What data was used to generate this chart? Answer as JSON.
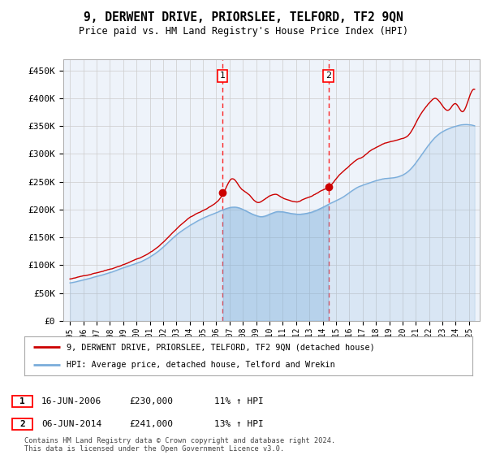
{
  "title": "9, DERWENT DRIVE, PRIORSLEE, TELFORD, TF2 9QN",
  "subtitle": "Price paid vs. HM Land Registry's House Price Index (HPI)",
  "ylabel_ticks": [
    "£0",
    "£50K",
    "£100K",
    "£150K",
    "£200K",
    "£250K",
    "£300K",
    "£350K",
    "£400K",
    "£450K"
  ],
  "ytick_values": [
    0,
    50000,
    100000,
    150000,
    200000,
    250000,
    300000,
    350000,
    400000,
    450000
  ],
  "sale1_year": 2006.46,
  "sale1_price": 230000,
  "sale2_year": 2014.43,
  "sale2_price": 241000,
  "legend_house": "9, DERWENT DRIVE, PRIORSLEE, TELFORD, TF2 9QN (detached house)",
  "legend_hpi": "HPI: Average price, detached house, Telford and Wrekin",
  "house_color": "#cc0000",
  "hpi_color": "#7aaddb",
  "hpi_fill_color": "#c8dff0",
  "bg_color": "#eef3fa",
  "ann1_date": "16-JUN-2006",
  "ann1_price": "£230,000",
  "ann1_hpi": "11% ↑ HPI",
  "ann2_date": "06-JUN-2014",
  "ann2_price": "£241,000",
  "ann2_hpi": "13% ↑ HPI",
  "footer": "Contains HM Land Registry data © Crown copyright and database right 2024.\nThis data is licensed under the Open Government Licence v3.0.",
  "xlim_left": 1994.5,
  "xlim_right": 2025.8,
  "ylim_top": 470000
}
